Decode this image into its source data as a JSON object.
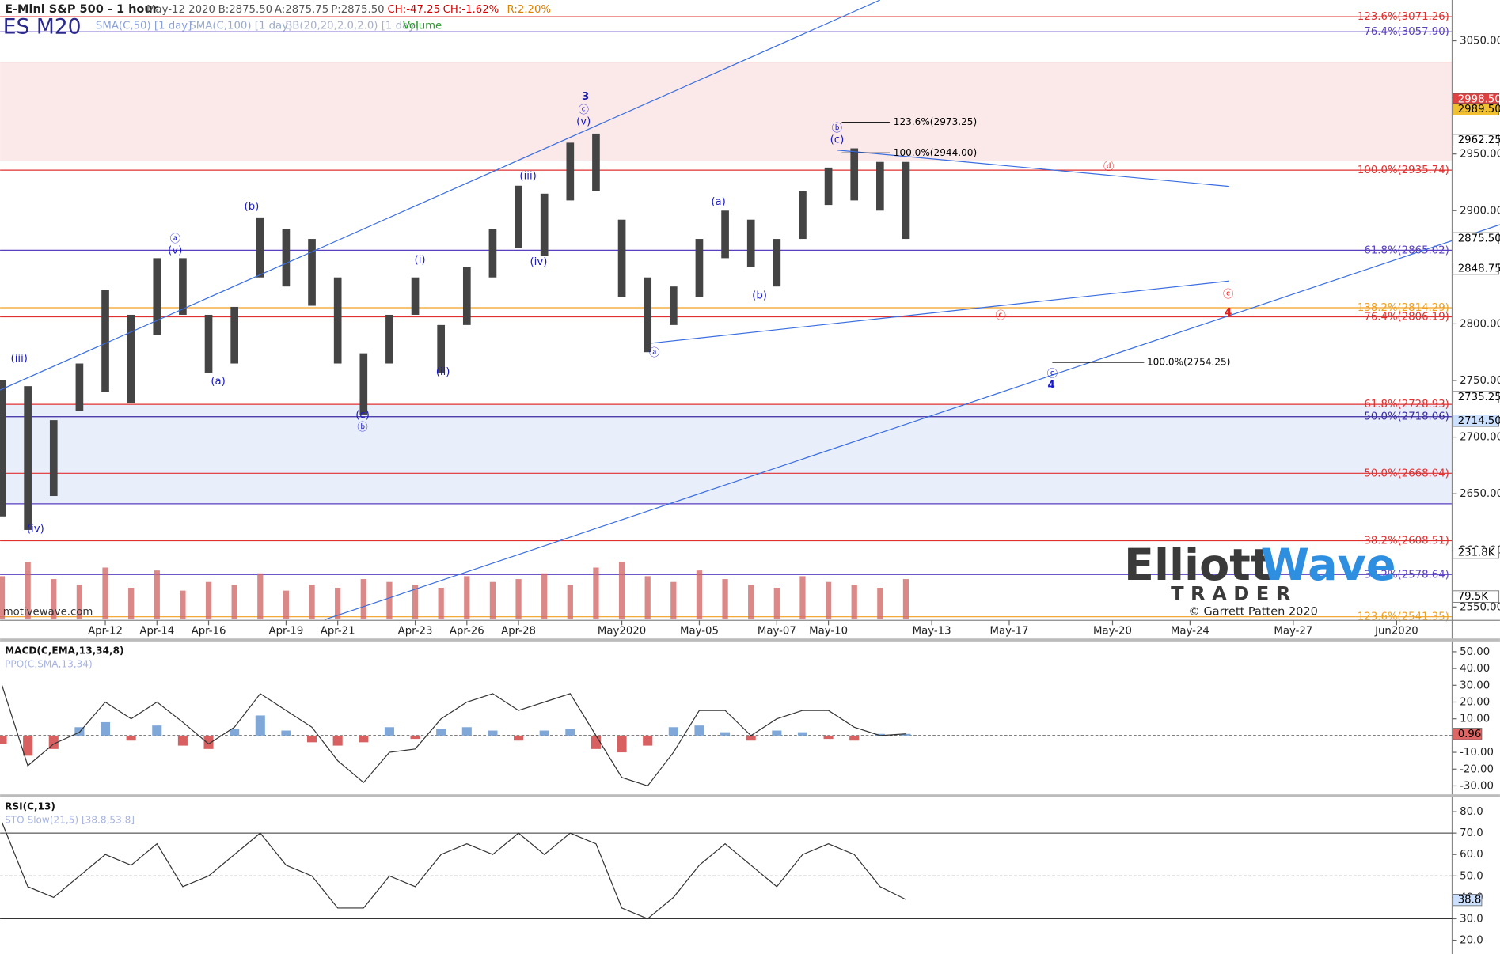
{
  "header": {
    "title": "E-Mini S&P 500 - 1 hour",
    "symbol": "ES M20",
    "quote": [
      {
        "text": "May-12 2020",
        "color": "#555"
      },
      {
        "text": "B:2875.50",
        "color": "#555"
      },
      {
        "text": "A:2875.75",
        "color": "#555"
      },
      {
        "text": "P:2875.50",
        "color": "#555"
      },
      {
        "text": "CH:-47.25",
        "color": "#d00000"
      },
      {
        "text": "CH:-1.62%",
        "color": "#d00000"
      },
      {
        "text": "R:2.20%",
        "color": "#e08000"
      }
    ],
    "studies": [
      {
        "text": "SMA(C,50) [1 day]",
        "color": "#8aa0d8"
      },
      {
        "text": "SMA(C,100) [1 day]",
        "color": "#99aacc"
      },
      {
        "text": "BB(20,20,2.0,2.0) [1 day]",
        "color": "#aab0c8"
      },
      {
        "text": "Volume",
        "color": "#2a9a2a"
      }
    ]
  },
  "logo": {
    "word1": "Elliott",
    "word2": "Wave",
    "word3": "TRADER",
    "credit": "© Garrett Patten 2020"
  },
  "watermark": "motivewave.com",
  "chart_data": [
    {
      "type": "ohlc",
      "categories": [
        null,
        null,
        null,
        null,
        "Apr-12",
        null,
        "Apr-14",
        null,
        "Apr-16",
        null,
        null,
        "Apr-19",
        null,
        "Apr-21",
        null,
        null,
        "Apr-23",
        null,
        "Apr-26",
        null,
        "Apr-28",
        null,
        null,
        null,
        "May2020",
        null,
        null,
        "May-05",
        null,
        null,
        "May-07",
        null,
        "May-10",
        null,
        null,
        null,
        "May-13",
        null,
        null,
        "May-17",
        null,
        null,
        null,
        "May-20",
        null,
        null,
        "May-24",
        null,
        null,
        null,
        "May-27",
        null,
        null,
        null,
        "Jun2020"
      ],
      "high": [
        2750,
        2745,
        2715,
        2765,
        2830,
        2808,
        2858,
        2858,
        2808,
        2815,
        2894,
        2884,
        2875,
        2841,
        2774,
        2808,
        2841,
        2799,
        2850,
        2884,
        2922,
        2915,
        2960,
        2968,
        2892,
        2841,
        2833,
        2875,
        2900,
        2892,
        2875,
        2917,
        2938,
        2955,
        2943,
        2943,
        null,
        null,
        null,
        null,
        null,
        null,
        null,
        null,
        null,
        null,
        null,
        null,
        null,
        null,
        null,
        null,
        null,
        null,
        null
      ],
      "low": [
        2630,
        2618,
        2648,
        2723,
        2740,
        2730,
        2790,
        2808,
        2757,
        2765,
        2841,
        2833,
        2816,
        2765,
        2720,
        2765,
        2808,
        2757,
        2799,
        2841,
        2867,
        2860,
        2909,
        2917,
        2824,
        2775,
        2799,
        2824,
        2858,
        2850,
        2833,
        2875,
        2905,
        2909,
        2900,
        2875,
        null,
        null,
        null,
        null,
        null,
        null,
        null,
        null,
        null,
        null,
        null,
        null,
        null,
        null,
        null,
        null,
        null,
        null,
        null
      ],
      "bar_color": "#444",
      "ylim": [
        2539,
        3086
      ],
      "yticks": [
        {
          "value": 3050,
          "label": "3050.00"
        },
        {
          "value": 3000,
          "label": "3000.00"
        },
        {
          "value": 2950,
          "label": "2950.00"
        },
        {
          "value": 2900,
          "label": "2900.00"
        },
        {
          "value": 2850,
          "label": "2850.00"
        },
        {
          "value": 2800,
          "label": "2800.00"
        },
        {
          "value": 2750,
          "label": "2750.00"
        },
        {
          "value": 2700,
          "label": "2700.00"
        },
        {
          "value": 2650,
          "label": "2650.00"
        },
        {
          "value": 2600,
          "label": "2600.00"
        },
        {
          "value": 2550,
          "label": "2550.00"
        }
      ],
      "levels": [
        {
          "value": 3071.26,
          "label": "123.6%(3071.26)",
          "color": "#e03030"
        },
        {
          "value": 3057.9,
          "label": "76.4%(3057.90)",
          "color": "#5a3fc0"
        },
        {
          "value": 2935.74,
          "label": "100.0%(2935.74)",
          "color": "#e03030"
        },
        {
          "value": 2865.02,
          "label": "61.8%(2865.02)",
          "color": "#5a3fc0"
        },
        {
          "value": 2814.29,
          "label": "138.2%(2814.29)",
          "color": "#f0a020"
        },
        {
          "value": 2806.19,
          "label": "76.4%(2806.19)",
          "color": "#e03030"
        },
        {
          "value": 2728.93,
          "label": "61.8%(2728.93)",
          "color": "#e03030"
        },
        {
          "value": 2718.06,
          "label": "50.0%(2718.06)",
          "color": "#3a2aa0"
        },
        {
          "value": 2668.04,
          "label": "50.0%(2668.04)",
          "color": "#e03030"
        },
        {
          "value": 2608.51,
          "label": "38.2%(2608.51)",
          "color": "#e03030"
        },
        {
          "value": 2578.64,
          "label": "38.2%(2578.64)",
          "color": "#5a3fc0"
        },
        {
          "value": 2541.35,
          "label": "123.6%(2541.35)",
          "color": "#f0a020"
        }
      ],
      "price_tags": [
        {
          "value": 2998.5,
          "label": "2998.50",
          "color": "#e04040",
          "text_color": "#fff"
        },
        {
          "value": 2989.5,
          "label": "2989.50",
          "color": "#f0c030",
          "text_color": "#000"
        },
        {
          "value": 2962.25,
          "label": "2962.25",
          "color": "#fff",
          "text_color": "#000"
        },
        {
          "value": 2875.5,
          "label": "2875.50",
          "color": "#fff",
          "text_color": "#000"
        },
        {
          "value": 2848.75,
          "label": "2848.75",
          "color": "#fff",
          "text_color": "#000"
        },
        {
          "value": 2735.25,
          "label": "2735.25",
          "color": "#fff",
          "text_color": "#000"
        },
        {
          "value": 2714.5,
          "label": "2714.50",
          "color": "#cce0ff",
          "text_color": "#000"
        }
      ],
      "volume": [
        150,
        200,
        140,
        120,
        180,
        110,
        170,
        100,
        130,
        120,
        160,
        100,
        120,
        110,
        140,
        130,
        120,
        110,
        150,
        130,
        140,
        160,
        120,
        180,
        200,
        150,
        130,
        170,
        140,
        120,
        110,
        150,
        130,
        120,
        110,
        140,
        null,
        null,
        null,
        null,
        null,
        null,
        null,
        null,
        null,
        null,
        null,
        null,
        null,
        null,
        null,
        null,
        null,
        null,
        null
      ],
      "volume_color": "#d26a6a",
      "volume_ylim": [
        0,
        2150
      ],
      "volume_tags": [
        {
          "value": 231.8,
          "label": "231.8K"
        },
        {
          "value": 79.5,
          "label": "79.5K"
        }
      ],
      "annotations": [
        {
          "text": "3",
          "color": "#1a1a9a"
        },
        {
          "text": "ⓒ",
          "color": "#1a1acc"
        },
        {
          "text": "(v)",
          "color": "#1a1acc"
        },
        {
          "text": "(b)",
          "color": "#1a1acc"
        },
        {
          "text": "ⓐ",
          "color": "#1a1acc"
        },
        {
          "text": "(v)",
          "color": "#1a1acc"
        },
        {
          "text": "(iii)",
          "color": "#1a1acc"
        },
        {
          "text": "(a)",
          "color": "#1a1acc"
        },
        {
          "text": "(iv)",
          "color": "#1a1acc"
        },
        {
          "text": "(c)",
          "color": "#1a1acc"
        },
        {
          "text": "ⓑ",
          "color": "#1a1acc"
        },
        {
          "text": "(i)",
          "color": "#1a1acc"
        },
        {
          "text": "(ii)",
          "color": "#1a1acc"
        },
        {
          "text": "(iii)",
          "color": "#1a1acc"
        },
        {
          "text": "(iv)",
          "color": "#1a1acc"
        },
        {
          "text": "ⓑ",
          "color": "#1a1acc"
        },
        {
          "text": "(c)",
          "color": "#1a1acc"
        },
        {
          "text": "123.6%(2973.25)",
          "color": "#000"
        },
        {
          "text": "100.0%(2944.00)",
          "color": "#000"
        },
        {
          "text": "(a)",
          "color": "#1a1acc"
        },
        {
          "text": "(b)",
          "color": "#1a1acc"
        },
        {
          "text": "ⓐ",
          "color": "#1a1acc"
        },
        {
          "text": "ⓓ",
          "color": "#e02020"
        },
        {
          "text": "ⓒ",
          "color": "#e02020"
        },
        {
          "text": "ⓔ",
          "color": "#e02020"
        },
        {
          "text": "4",
          "color": "#e02020"
        },
        {
          "text": "ⓒ",
          "color": "#1a1acc"
        },
        {
          "text": "4",
          "color": "#1a1acc"
        },
        {
          "text": "100.0%(2754.25)",
          "color": "#000"
        }
      ]
    },
    {
      "type": "macd",
      "title": "MACD(C,EMA,13,34,8)",
      "subtitle": "PPO(C,SMA,13,34)",
      "values": [
        30,
        -18,
        -5,
        2,
        20,
        10,
        20,
        8,
        -5,
        5,
        25,
        15,
        5,
        -15,
        -28,
        -10,
        -8,
        10,
        20,
        25,
        15,
        20,
        25,
        0,
        -25,
        -30,
        -10,
        15,
        15,
        0,
        10,
        15,
        15,
        5,
        0,
        1,
        null,
        null,
        null,
        null,
        null,
        null,
        null,
        null,
        null,
        null,
        null,
        null,
        null,
        null,
        null,
        null,
        null,
        null,
        null
      ],
      "histogram": [
        -5,
        -12,
        -8,
        5,
        8,
        -3,
        6,
        -6,
        -8,
        4,
        12,
        3,
        -4,
        -6,
        -4,
        5,
        -2,
        4,
        5,
        3,
        -3,
        3,
        4,
        -8,
        -10,
        -6,
        5,
        6,
        2,
        -3,
        3,
        2,
        -2,
        -3,
        1,
        1,
        null,
        null,
        null,
        null,
        null,
        null,
        null,
        null,
        null,
        null,
        null,
        null,
        null,
        null,
        null,
        null,
        null,
        null,
        null
      ],
      "line_color": "#333",
      "pos_color": "#7fa8d8",
      "neg_color": "#d86060",
      "ylim": [
        -34.5,
        55.6
      ],
      "yticks": [
        {
          "value": 50,
          "label": "50.00"
        },
        {
          "value": 40,
          "label": "40.00"
        },
        {
          "value": 30,
          "label": "30.00"
        },
        {
          "value": 20,
          "label": "20.00"
        },
        {
          "value": 10,
          "label": "10.00"
        },
        {
          "value": -10,
          "label": "-10.00"
        },
        {
          "value": -20,
          "label": "-20.00"
        },
        {
          "value": -30,
          "label": "-30.00"
        }
      ],
      "ref_lines": [
        0
      ],
      "tag": {
        "value": 0.96,
        "label": "0.96",
        "color": "#e06666"
      }
    },
    {
      "type": "rsi",
      "title": "RSI(C,13)",
      "subtitle": "STO Slow(21,5) [38.8,53.8]",
      "values": [
        75,
        45,
        40,
        50,
        60,
        55,
        65,
        45,
        50,
        60,
        70,
        55,
        50,
        35,
        35,
        50,
        45,
        60,
        65,
        60,
        70,
        60,
        70,
        65,
        35,
        30,
        40,
        55,
        65,
        55,
        45,
        60,
        65,
        60,
        45,
        39,
        null,
        null,
        null,
        null,
        null,
        null,
        null,
        null,
        null,
        null,
        null,
        null,
        null,
        null,
        null,
        null,
        null,
        null,
        null
      ],
      "line_color": "#333",
      "ylim": [
        14,
        86.3
      ],
      "yticks": [
        {
          "value": 80,
          "label": "80.0"
        },
        {
          "value": 70,
          "label": "70.0"
        },
        {
          "value": 60,
          "label": "60.0"
        },
        {
          "value": 50,
          "label": "50.0"
        },
        {
          "value": 40,
          "label": "40.0"
        },
        {
          "value": 30,
          "label": "30.0"
        },
        {
          "value": 20,
          "label": "20.0"
        }
      ],
      "ref_lines": [
        70,
        50,
        30
      ],
      "tag": {
        "value": 38.8,
        "label": "38.8",
        "color": "#cce0ff"
      }
    }
  ]
}
